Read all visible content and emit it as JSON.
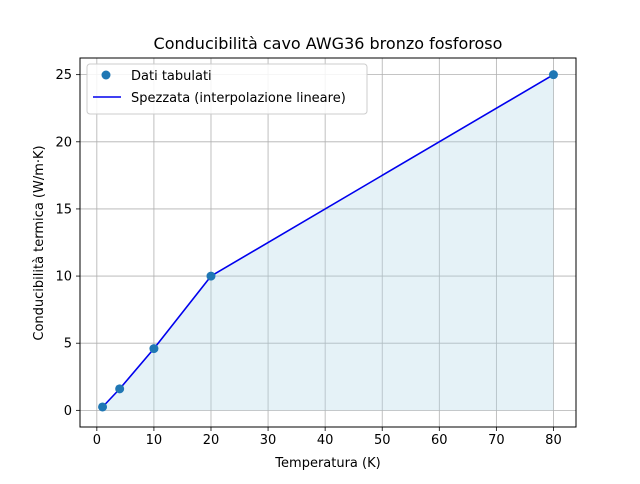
{
  "chart_data": {
    "type": "line",
    "title": "Conducibilità cavo AWG36 bronzo fosforoso",
    "xlabel": "Temperatura (K)",
    "ylabel": "Conducibilità termica (W/m·K)",
    "xlim": [
      -2.95,
      83.95
    ],
    "ylim": [
      -1.24,
      26.24
    ],
    "xticks": [
      0,
      10,
      20,
      30,
      40,
      50,
      60,
      70,
      80
    ],
    "yticks": [
      0,
      5,
      10,
      15,
      20,
      25
    ],
    "grid": true,
    "legend_position": "top-left",
    "series": [
      {
        "name": "Dati tabulati",
        "kind": "markers",
        "color": "#1f77b4",
        "x": [
          1,
          4,
          10,
          20,
          80
        ],
        "y": [
          0.25,
          1.6,
          4.6,
          10.0,
          25.0
        ]
      },
      {
        "name": "Spezzata (interpolazione lineare)",
        "kind": "line",
        "color": "#0000ee",
        "fill": "#add8e6",
        "x": [
          1,
          4,
          10,
          20,
          80
        ],
        "y": [
          0.25,
          1.6,
          4.6,
          10.0,
          25.0
        ]
      }
    ]
  }
}
